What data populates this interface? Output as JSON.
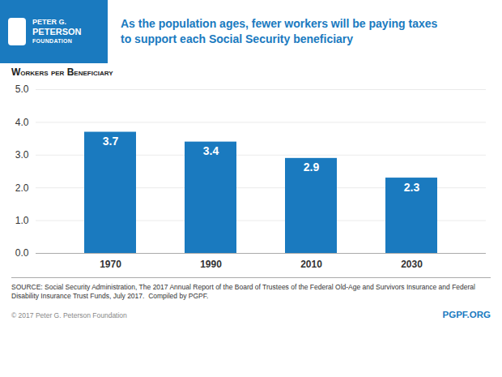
{
  "chart_data": {
    "type": "bar",
    "title": "As the population ages, fewer workers will be paying taxes\nto support each Social Security beneficiary",
    "ylabel": "Workers per Beneficiary",
    "categories": [
      "1970",
      "1990",
      "2010",
      "2030"
    ],
    "values": [
      3.7,
      3.4,
      2.9,
      2.3
    ],
    "color": "#1a7abf",
    "ylim": [
      0,
      5
    ],
    "yticks": [
      0,
      1,
      2,
      3,
      4,
      5
    ],
    "grid": true,
    "data_labels": true,
    "annotations": [
      "PETER G.",
      "PETERSON",
      "FOUNDATION",
      "SOURCE: Social Security Administration, The 2017 Annual Report of the Board of Trustees of the Federal Old-Age and Survivors Insurance and Federal Disability Insurance Trust Funds, July 2017.  Compiled by PGPF.",
      "© 2017 Peter G. Peterson Foundation",
      "PGPF.ORG"
    ]
  }
}
